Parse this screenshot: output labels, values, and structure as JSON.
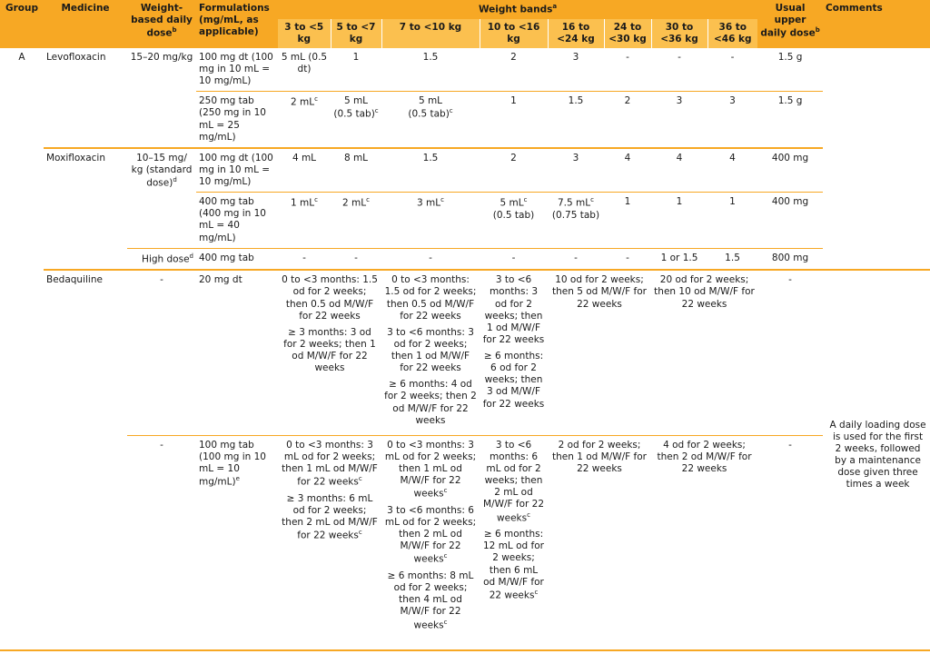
{
  "headers": {
    "group": "Group",
    "medicine": "Medicine",
    "weight_based": "Weight-based daily dose",
    "weight_based_sup": "b",
    "formulations": "Formulations (mg/mL, as applicable)",
    "weight_bands": "Weight bands",
    "weight_bands_sup": "a",
    "usual_upper": "Usual upper daily dose",
    "usual_upper_sup": "b",
    "comments": "Comments",
    "bands": [
      "3 to <5 kg",
      "5 to <7 kg",
      "7 to <10 kg",
      "10 to <16 kg",
      "16 to <24 kg",
      "24 to <30 kg",
      "30 to <36 kg",
      "36 to <46 kg"
    ]
  },
  "rows": {
    "levo_group": "A",
    "levo_name": "Levofloxacin",
    "levo_dose": "15–20 mg/kg",
    "levo1": {
      "form": "100 mg dt (100 mg in 10 mL = 10 mg/mL)",
      "b1": "5 mL (0.5 dt)",
      "b2": "1",
      "b3": "1.5",
      "b4": "2",
      "b5": "3",
      "b6": "-",
      "b7": "-",
      "b8": "-",
      "upper": "1.5 g"
    },
    "levo2": {
      "form": "250 mg tab (250 mg in 10 mL = 25 mg/mL)",
      "b1": "2 mL",
      "b2a": "5 mL",
      "b2b": "(0.5 tab)",
      "b3a": "5 mL",
      "b3b": "(0.5 tab)",
      "b4": "1",
      "b5": "1.5",
      "b6": "2",
      "b7": "3",
      "b8": "3",
      "upper": "1.5 g"
    },
    "moxi_name": "Moxifloxacin",
    "moxi_dose": "10–15 mg/ kg (standard dose)",
    "moxi1": {
      "form": "100 mg dt (100 mg in 10 mL = 10 mg/mL)",
      "b1": "4 mL",
      "b2": "8 mL",
      "b3": "1.5",
      "b4": "2",
      "b5": "3",
      "b6": "4",
      "b7": "4",
      "b8": "4",
      "upper": "400 mg"
    },
    "moxi2": {
      "form": "400 mg tab (400 mg in 10 mL = 40 mg/mL)",
      "b1": "1 mL",
      "b2": "2 mL",
      "b3": "3 mL",
      "b4a": "5 mL",
      "b4b": "(0.5 tab)",
      "b5a": "7.5 mL",
      "b5b": "(0.75 tab)",
      "b6": "1",
      "b7": "1",
      "b8": "1",
      "upper": "400 mg"
    },
    "moxi3": {
      "dose": "High dose",
      "form": "400 mg tab",
      "b1": "-",
      "b2": "-",
      "b3": "-",
      "b4": "-",
      "b5": "-",
      "b6": "-",
      "b7": "1 or 1.5",
      "b8": "1.5",
      "upper": "800 mg"
    },
    "bdq_name": "Bedaquiline",
    "bdq1": {
      "dose": "-",
      "form": "20 mg dt",
      "b12_p1": "0 to <3 months: 1.5 od for 2 weeks; then 0.5 od M/W/F for 22 weeks",
      "b12_p2": "≥ 3 months: 3 od for 2 weeks; then 1 od M/W/F for 22 weeks",
      "b3_p1": "0 to <3 months: 1.5 od for 2 weeks; then 0.5 od M/W/F for 22 weeks",
      "b3_p2": "3 to <6 months: 3 od for 2 weeks; then 1 od M/W/F for 22 weeks",
      "b3_p3": "≥ 6 months: 4 od for 2 weeks; then 2 od M/W/F for 22 weeks",
      "b4_p1": "3 to <6 months: 3 od for 2 weeks; then 1 od M/W/F for 22 weeks",
      "b4_p2": "≥ 6 months: 6 od for 2 weeks; then 3 od M/W/F for 22 weeks",
      "b56": "10 od for 2 weeks; then 5 od M/W/F for 22 weeks",
      "b78": "20 od for 2 weeks; then 10 od M/W/F for 22 weeks",
      "upper": "-"
    },
    "bdq2": {
      "dose": "-",
      "form": "100 mg tab (100 mg in 10 mL = 10 mg/mL)",
      "b12_p1": "0 to <3 months: 3 mL od for 2 weeks; then 1 mL od M/W/F for 22 weeks",
      "b12_p2": "≥ 3 months: 6 mL od for 2 weeks; then 2 mL od M/W/F for 22 weeks",
      "b3_p1": "0 to <3 months: 3 mL od for 2 weeks; then 1 mL od M/W/F for 22 weeks",
      "b3_p2": "3 to <6 months: 6 mL od for 2 weeks; then 2 mL od M/W/F for 22 weeks",
      "b3_p3": "≥ 6 months: 8 mL od for 2 weeks; then 4 mL od M/W/F for 22 weeks",
      "b4_p1": "3 to <6 months: 6 mL od for 2 weeks; then 2 mL od M/W/F for 22 weeks",
      "b4_p2": "≥ 6 months: 12 mL od for 2 weeks; then 6 mL od M/W/F for 22 weeks",
      "b56": "2 od for 2 weeks; then 1 od M/W/F for 22 weeks",
      "b78": "4 od for 2 weeks; then 2 od M/W/F for 22 weeks",
      "upper": "-"
    },
    "bdq_comment": "A daily loading dose is used for the first 2 weeks, followed by a maintenance dose given three times a week"
  },
  "footnote_marks": {
    "c": "c",
    "d": "d",
    "e": "e"
  },
  "colors": {
    "header": "#f7a824",
    "subheader": "#fbc04f",
    "rule": "#f7a824"
  }
}
